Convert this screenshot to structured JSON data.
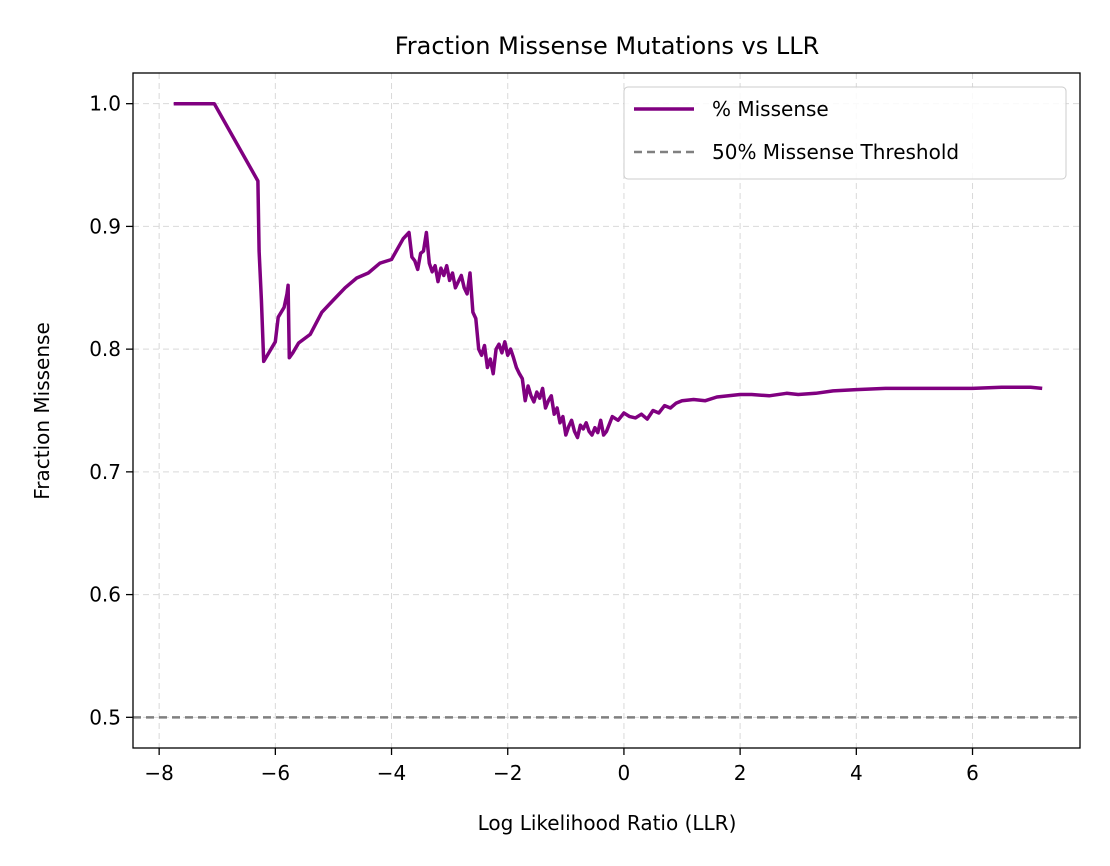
{
  "chart_data": {
    "type": "line",
    "title": "Fraction Missense Mutations vs LLR",
    "xlabel": "Log Likelihood Ratio (LLR)",
    "ylabel": "Fraction Missense",
    "xlim": [
      -8.45,
      7.85
    ],
    "ylim": [
      0.475,
      1.025
    ],
    "xticks": [
      -8,
      -6,
      -4,
      -2,
      0,
      2,
      4,
      6
    ],
    "xtick_labels": [
      "−8",
      "−6",
      "−4",
      "−2",
      "0",
      "2",
      "4",
      "6"
    ],
    "yticks": [
      0.5,
      0.6,
      0.7,
      0.8,
      0.9,
      1.0
    ],
    "ytick_labels": [
      "0.5",
      "0.6",
      "0.7",
      "0.8",
      "0.9",
      "1.0"
    ],
    "grid": true,
    "legend_position": "top-right",
    "colors": {
      "missense": "#800080",
      "threshold": "#808080"
    },
    "series": [
      {
        "name": "% Missense",
        "style": "solid",
        "x": [
          -7.75,
          -7.05,
          -6.3,
          -6.28,
          -6.24,
          -6.2,
          -6.1,
          -6.0,
          -5.95,
          -5.85,
          -5.8,
          -5.78,
          -5.76,
          -5.7,
          -5.6,
          -5.4,
          -5.2,
          -5.0,
          -4.8,
          -4.6,
          -4.4,
          -4.2,
          -4.0,
          -3.8,
          -3.7,
          -3.65,
          -3.6,
          -3.55,
          -3.5,
          -3.45,
          -3.4,
          -3.35,
          -3.3,
          -3.25,
          -3.2,
          -3.15,
          -3.1,
          -3.05,
          -3.0,
          -2.95,
          -2.9,
          -2.85,
          -2.8,
          -2.75,
          -2.7,
          -2.65,
          -2.6,
          -2.55,
          -2.5,
          -2.45,
          -2.4,
          -2.35,
          -2.3,
          -2.25,
          -2.2,
          -2.15,
          -2.1,
          -2.05,
          -2.0,
          -1.95,
          -1.9,
          -1.85,
          -1.8,
          -1.75,
          -1.7,
          -1.65,
          -1.6,
          -1.55,
          -1.5,
          -1.45,
          -1.4,
          -1.35,
          -1.3,
          -1.25,
          -1.2,
          -1.15,
          -1.1,
          -1.05,
          -1.0,
          -0.95,
          -0.9,
          -0.85,
          -0.8,
          -0.75,
          -0.7,
          -0.65,
          -0.6,
          -0.55,
          -0.5,
          -0.45,
          -0.4,
          -0.35,
          -0.3,
          -0.2,
          -0.1,
          0.0,
          0.1,
          0.2,
          0.3,
          0.4,
          0.5,
          0.6,
          0.7,
          0.8,
          0.9,
          1.0,
          1.2,
          1.4,
          1.6,
          1.8,
          2.0,
          2.2,
          2.5,
          2.8,
          3.0,
          3.3,
          3.6,
          4.0,
          4.5,
          5.0,
          5.5,
          6.0,
          6.5,
          7.0,
          7.2
        ],
        "y": [
          1.0,
          1.0,
          0.937,
          0.88,
          0.84,
          0.79,
          0.798,
          0.806,
          0.826,
          0.834,
          0.845,
          0.852,
          0.793,
          0.797,
          0.805,
          0.812,
          0.83,
          0.84,
          0.85,
          0.858,
          0.862,
          0.87,
          0.873,
          0.89,
          0.895,
          0.875,
          0.872,
          0.865,
          0.878,
          0.88,
          0.895,
          0.87,
          0.863,
          0.868,
          0.855,
          0.866,
          0.86,
          0.868,
          0.856,
          0.862,
          0.85,
          0.855,
          0.86,
          0.85,
          0.845,
          0.862,
          0.83,
          0.825,
          0.8,
          0.795,
          0.803,
          0.785,
          0.792,
          0.78,
          0.8,
          0.804,
          0.797,
          0.806,
          0.795,
          0.8,
          0.793,
          0.785,
          0.78,
          0.776,
          0.758,
          0.77,
          0.762,
          0.757,
          0.765,
          0.76,
          0.768,
          0.752,
          0.758,
          0.762,
          0.747,
          0.752,
          0.74,
          0.745,
          0.73,
          0.737,
          0.742,
          0.733,
          0.728,
          0.738,
          0.735,
          0.74,
          0.733,
          0.73,
          0.736,
          0.732,
          0.742,
          0.73,
          0.733,
          0.745,
          0.742,
          0.748,
          0.745,
          0.744,
          0.747,
          0.743,
          0.75,
          0.748,
          0.754,
          0.752,
          0.756,
          0.758,
          0.759,
          0.758,
          0.761,
          0.762,
          0.763,
          0.763,
          0.762,
          0.764,
          0.763,
          0.764,
          0.766,
          0.767,
          0.768,
          0.768,
          0.768,
          0.768,
          0.769,
          0.769,
          0.768
        ]
      },
      {
        "name": "50% Missense Threshold",
        "style": "dashed",
        "y_const": 0.5
      }
    ]
  }
}
